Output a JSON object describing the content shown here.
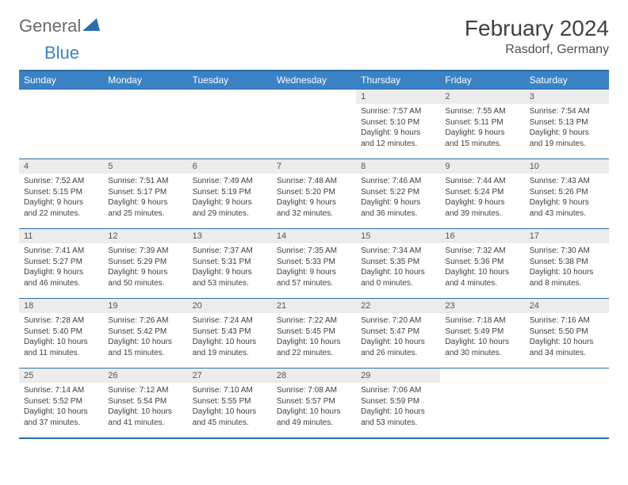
{
  "logo": {
    "text_gray": "General",
    "text_blue": "Blue"
  },
  "header": {
    "month_title": "February 2024",
    "location": "Rasdorf, Germany"
  },
  "colors": {
    "header_bg": "#3b82c4",
    "border": "#2b6fa8",
    "daynum_bg": "#ececec",
    "text": "#404040"
  },
  "day_labels": [
    "Sunday",
    "Monday",
    "Tuesday",
    "Wednesday",
    "Thursday",
    "Friday",
    "Saturday"
  ],
  "first_weekday_index": 4,
  "days_in_month": 29,
  "days": {
    "1": {
      "sunrise": "7:57 AM",
      "sunset": "5:10 PM",
      "dl_h": 9,
      "dl_m": 12
    },
    "2": {
      "sunrise": "7:55 AM",
      "sunset": "5:11 PM",
      "dl_h": 9,
      "dl_m": 15
    },
    "3": {
      "sunrise": "7:54 AM",
      "sunset": "5:13 PM",
      "dl_h": 9,
      "dl_m": 19
    },
    "4": {
      "sunrise": "7:52 AM",
      "sunset": "5:15 PM",
      "dl_h": 9,
      "dl_m": 22
    },
    "5": {
      "sunrise": "7:51 AM",
      "sunset": "5:17 PM",
      "dl_h": 9,
      "dl_m": 25
    },
    "6": {
      "sunrise": "7:49 AM",
      "sunset": "5:19 PM",
      "dl_h": 9,
      "dl_m": 29
    },
    "7": {
      "sunrise": "7:48 AM",
      "sunset": "5:20 PM",
      "dl_h": 9,
      "dl_m": 32
    },
    "8": {
      "sunrise": "7:46 AM",
      "sunset": "5:22 PM",
      "dl_h": 9,
      "dl_m": 36
    },
    "9": {
      "sunrise": "7:44 AM",
      "sunset": "5:24 PM",
      "dl_h": 9,
      "dl_m": 39
    },
    "10": {
      "sunrise": "7:43 AM",
      "sunset": "5:26 PM",
      "dl_h": 9,
      "dl_m": 43
    },
    "11": {
      "sunrise": "7:41 AM",
      "sunset": "5:27 PM",
      "dl_h": 9,
      "dl_m": 46
    },
    "12": {
      "sunrise": "7:39 AM",
      "sunset": "5:29 PM",
      "dl_h": 9,
      "dl_m": 50
    },
    "13": {
      "sunrise": "7:37 AM",
      "sunset": "5:31 PM",
      "dl_h": 9,
      "dl_m": 53
    },
    "14": {
      "sunrise": "7:35 AM",
      "sunset": "5:33 PM",
      "dl_h": 9,
      "dl_m": 57
    },
    "15": {
      "sunrise": "7:34 AM",
      "sunset": "5:35 PM",
      "dl_h": 10,
      "dl_m": 0
    },
    "16": {
      "sunrise": "7:32 AM",
      "sunset": "5:36 PM",
      "dl_h": 10,
      "dl_m": 4
    },
    "17": {
      "sunrise": "7:30 AM",
      "sunset": "5:38 PM",
      "dl_h": 10,
      "dl_m": 8
    },
    "18": {
      "sunrise": "7:28 AM",
      "sunset": "5:40 PM",
      "dl_h": 10,
      "dl_m": 11
    },
    "19": {
      "sunrise": "7:26 AM",
      "sunset": "5:42 PM",
      "dl_h": 10,
      "dl_m": 15
    },
    "20": {
      "sunrise": "7:24 AM",
      "sunset": "5:43 PM",
      "dl_h": 10,
      "dl_m": 19
    },
    "21": {
      "sunrise": "7:22 AM",
      "sunset": "5:45 PM",
      "dl_h": 10,
      "dl_m": 22
    },
    "22": {
      "sunrise": "7:20 AM",
      "sunset": "5:47 PM",
      "dl_h": 10,
      "dl_m": 26
    },
    "23": {
      "sunrise": "7:18 AM",
      "sunset": "5:49 PM",
      "dl_h": 10,
      "dl_m": 30
    },
    "24": {
      "sunrise": "7:16 AM",
      "sunset": "5:50 PM",
      "dl_h": 10,
      "dl_m": 34
    },
    "25": {
      "sunrise": "7:14 AM",
      "sunset": "5:52 PM",
      "dl_h": 10,
      "dl_m": 37
    },
    "26": {
      "sunrise": "7:12 AM",
      "sunset": "5:54 PM",
      "dl_h": 10,
      "dl_m": 41
    },
    "27": {
      "sunrise": "7:10 AM",
      "sunset": "5:55 PM",
      "dl_h": 10,
      "dl_m": 45
    },
    "28": {
      "sunrise": "7:08 AM",
      "sunset": "5:57 PM",
      "dl_h": 10,
      "dl_m": 49
    },
    "29": {
      "sunrise": "7:06 AM",
      "sunset": "5:59 PM",
      "dl_h": 10,
      "dl_m": 53
    }
  },
  "labels": {
    "sunrise_prefix": "Sunrise: ",
    "sunset_prefix": "Sunset: ",
    "daylight_prefix": "Daylight: ",
    "hours_word": " hours",
    "and_word": "and ",
    "minutes_word": " minutes."
  }
}
